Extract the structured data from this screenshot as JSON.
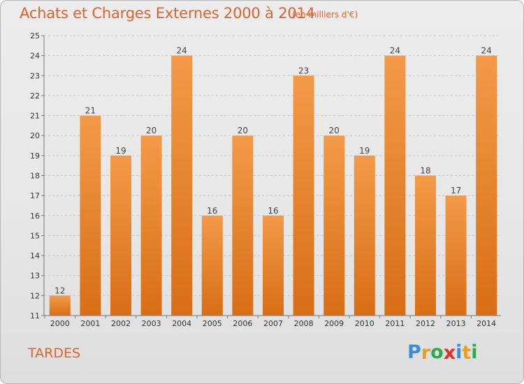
{
  "chart_data": {
    "type": "bar",
    "title": "Achats et Charges Externes 2000 à 2014",
    "subtitle": "(en milliers d'€)",
    "categories": [
      "2000",
      "2001",
      "2002",
      "2003",
      "2004",
      "2005",
      "2006",
      "2007",
      "2008",
      "2009",
      "2010",
      "2011",
      "2012",
      "2013",
      "2014"
    ],
    "values": [
      12,
      21,
      19,
      20,
      24,
      16,
      20,
      16,
      23,
      20,
      19,
      24,
      18,
      17,
      24
    ],
    "ylim": [
      11,
      25
    ],
    "yticks": [
      11,
      12,
      13,
      14,
      15,
      16,
      17,
      18,
      19,
      20,
      21,
      22,
      23,
      24,
      25
    ],
    "grid": true,
    "bar_color": "#f39a48",
    "bar_color_dark": "#d86e16",
    "text_color": "#e0622c"
  },
  "commune": "TARDES",
  "logo": {
    "letters": [
      "P",
      "r",
      "o",
      "x",
      "i",
      "t",
      "i"
    ],
    "colors": [
      "#3a8fd4",
      "#e8a020",
      "#2fa84f",
      "#e0302a",
      "#3a8fd4",
      "#e8a020",
      "#2fa84f"
    ]
  }
}
